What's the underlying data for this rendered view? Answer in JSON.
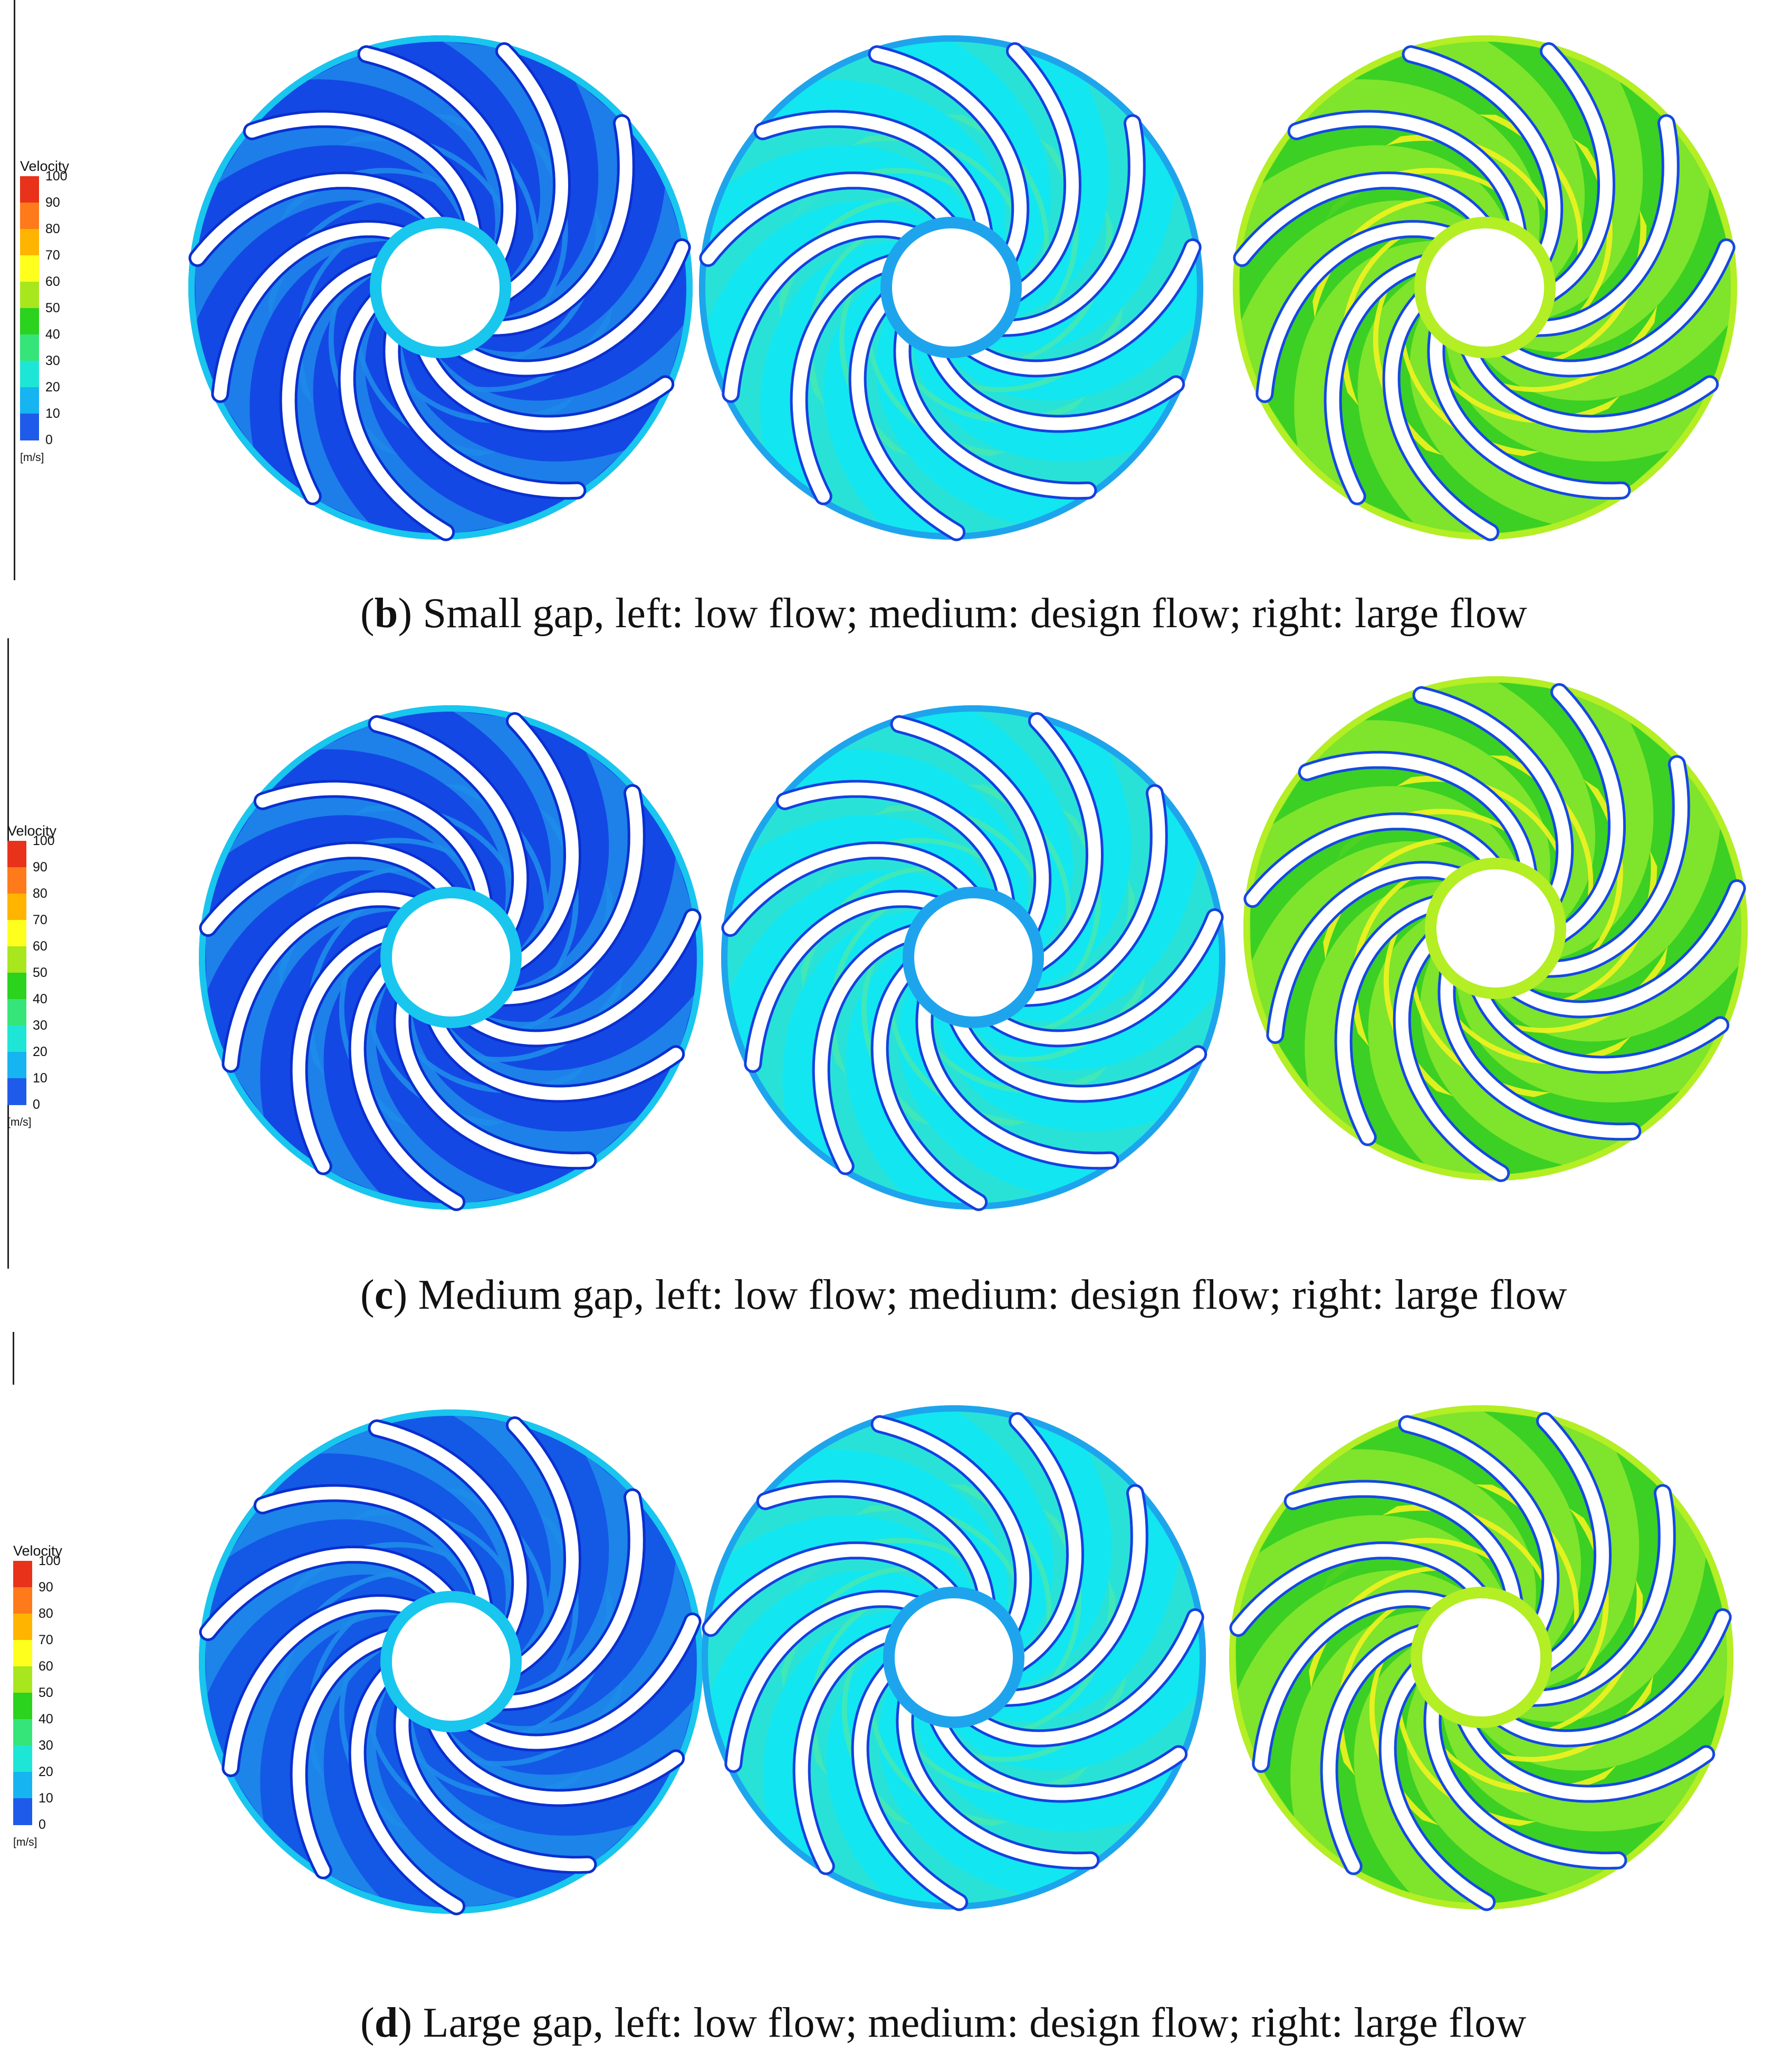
{
  "legend": {
    "title": "Velocity",
    "ticks": [
      "100",
      "90",
      "80",
      "70",
      "60",
      "50",
      "40",
      "30",
      "20",
      "10",
      "0"
    ],
    "unit": "[m/s]",
    "colors": [
      "#e8321a",
      "#ff7a1a",
      "#ffb400",
      "#ffff1e",
      "#a8e61e",
      "#2bd21e",
      "#35e57a",
      "#1ee6d6",
      "#16b4f0",
      "#1f5bea"
    ]
  },
  "sections": [
    {
      "letter": "b",
      "caption_rest": ") Small gap, left: low flow; medium: design flow; right: large flow",
      "impellers": [
        {
          "label": "low flow",
          "colors": {
            "base": "#1448e4",
            "band": "#1e88ea",
            "edge": "#18c6ee",
            "hot": "#1e88ea",
            "wake": "#0a2fcf"
          }
        },
        {
          "label": "design flow",
          "colors": {
            "base": "#12e6f0",
            "band": "#2ee0d2",
            "edge": "#1ea4ec",
            "hot": "#44e8b4",
            "wake": "#1540e0"
          }
        },
        {
          "label": "large flow",
          "colors": {
            "base": "#7ee42c",
            "band": "#2fcc22",
            "edge": "#b4ee24",
            "hot": "#f2f220",
            "wake": "#1448e4"
          }
        }
      ]
    },
    {
      "letter": "c",
      "caption_rest": ") Medium gap, left: low flow; medium: design flow; right: large flow",
      "impellers": [
        {
          "label": "low flow",
          "colors": {
            "base": "#1448e4",
            "band": "#1e8cea",
            "edge": "#18c6ee",
            "hot": "#1e8cea",
            "wake": "#0a2fcf"
          }
        },
        {
          "label": "design flow",
          "colors": {
            "base": "#12e6f0",
            "band": "#2ee0d2",
            "edge": "#1ea4ec",
            "hot": "#44e8b4",
            "wake": "#1540e0"
          }
        },
        {
          "label": "large flow",
          "colors": {
            "base": "#7ee42c",
            "band": "#2fcc22",
            "edge": "#b4ee24",
            "hot": "#f2f220",
            "wake": "#1448e4"
          }
        }
      ]
    },
    {
      "letter": "d",
      "caption_rest": ") Large gap, left: low flow; medium: design flow; right: large flow",
      "impellers": [
        {
          "label": "low flow",
          "colors": {
            "base": "#1458e6",
            "band": "#1e8cea",
            "edge": "#18c6ee",
            "hot": "#1e8cea",
            "wake": "#0a2fcf"
          }
        },
        {
          "label": "design flow",
          "colors": {
            "base": "#12e6f0",
            "band": "#2ee0d2",
            "edge": "#1ea4ec",
            "hot": "#44e8b4",
            "wake": "#1540e0"
          }
        },
        {
          "label": "large flow",
          "colors": {
            "base": "#7ee42c",
            "band": "#2fcc22",
            "edge": "#b4ee24",
            "hot": "#f2f220",
            "wake": "#1448e4"
          }
        }
      ]
    }
  ]
}
